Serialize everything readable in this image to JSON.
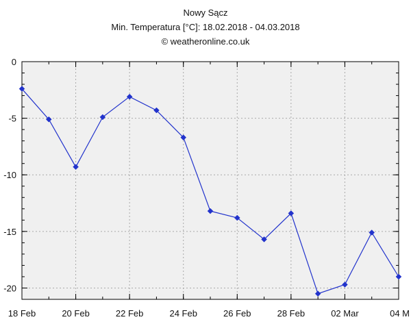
{
  "chart_data": {
    "type": "line",
    "title": "Nowy Sącz",
    "subtitle": "Min. Temperatura [°C]: 18.02.2018 - 04.03.2018",
    "credit": "© weatheronline.co.uk",
    "xlabel": "",
    "ylabel": "",
    "ylim": [
      -21,
      0
    ],
    "xlim": [
      0,
      14
    ],
    "yticks": [
      0,
      -5,
      -10,
      -15,
      -20
    ],
    "xticks": [
      {
        "x": 0,
        "label": "18 Feb"
      },
      {
        "x": 2,
        "label": "20 Feb"
      },
      {
        "x": 4,
        "label": "22 Feb"
      },
      {
        "x": 6,
        "label": "24 Feb"
      },
      {
        "x": 8,
        "label": "26 Feb"
      },
      {
        "x": 10,
        "label": "28 Feb"
      },
      {
        "x": 12,
        "label": "02 Mar"
      },
      {
        "x": 14,
        "label": "04 M"
      }
    ],
    "grid": true,
    "series": [
      {
        "name": "Min. Temperatura",
        "color": "#2233cc",
        "x": [
          0,
          1,
          2,
          3,
          4,
          5,
          6,
          7,
          8,
          9,
          10,
          11,
          12,
          13,
          14
        ],
        "values": [
          -2.4,
          -5.1,
          -9.3,
          -4.9,
          -3.1,
          -4.3,
          -6.7,
          -13.2,
          -13.8,
          -15.7,
          -13.4,
          -20.5,
          -19.7,
          -15.1,
          -19.0
        ]
      }
    ]
  }
}
